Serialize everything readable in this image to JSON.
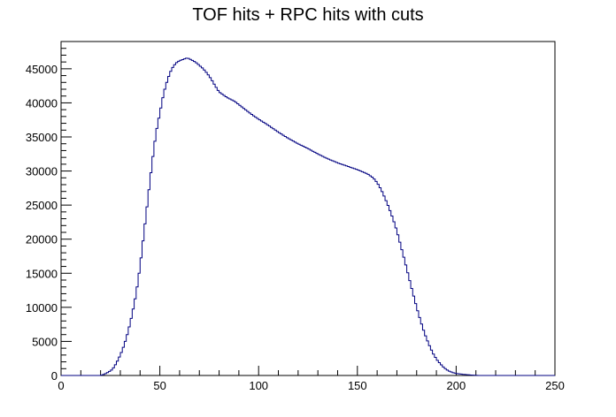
{
  "chart_data": {
    "type": "histogram",
    "title": "TOF hits + RPC hits with cuts",
    "xlabel": "",
    "ylabel": "",
    "xlim": [
      0,
      250
    ],
    "ylim": [
      0,
      49000
    ],
    "x_ticks": [
      0,
      50,
      100,
      150,
      200,
      250
    ],
    "y_ticks": [
      0,
      5000,
      10000,
      15000,
      20000,
      25000,
      30000,
      35000,
      40000,
      45000
    ],
    "bin_width": 1,
    "grid": false,
    "legend": "none",
    "line_color": "#000080",
    "points": [
      [
        20,
        0
      ],
      [
        22,
        200
      ],
      [
        24,
        500
      ],
      [
        26,
        900
      ],
      [
        28,
        1800
      ],
      [
        30,
        3000
      ],
      [
        32,
        4500
      ],
      [
        34,
        6500
      ],
      [
        36,
        9000
      ],
      [
        38,
        12000
      ],
      [
        40,
        16000
      ],
      [
        42,
        21000
      ],
      [
        44,
        26000
      ],
      [
        46,
        31000
      ],
      [
        48,
        35500
      ],
      [
        50,
        38500
      ],
      [
        52,
        41500
      ],
      [
        54,
        43500
      ],
      [
        56,
        45000
      ],
      [
        58,
        45800
      ],
      [
        60,
        46200
      ],
      [
        62,
        46400
      ],
      [
        64,
        46600
      ],
      [
        66,
        46300
      ],
      [
        68,
        46000
      ],
      [
        70,
        45500
      ],
      [
        72,
        45000
      ],
      [
        74,
        44300
      ],
      [
        76,
        43500
      ],
      [
        78,
        42500
      ],
      [
        80,
        41600
      ],
      [
        84,
        40800
      ],
      [
        88,
        40200
      ],
      [
        92,
        39300
      ],
      [
        96,
        38400
      ],
      [
        100,
        37600
      ],
      [
        105,
        36700
      ],
      [
        110,
        35700
      ],
      [
        115,
        34800
      ],
      [
        120,
        34000
      ],
      [
        125,
        33300
      ],
      [
        130,
        32500
      ],
      [
        135,
        31800
      ],
      [
        140,
        31200
      ],
      [
        145,
        30700
      ],
      [
        150,
        30200
      ],
      [
        155,
        29600
      ],
      [
        158,
        29000
      ],
      [
        160,
        28300
      ],
      [
        162,
        27300
      ],
      [
        164,
        26000
      ],
      [
        166,
        24600
      ],
      [
        168,
        23000
      ],
      [
        170,
        21200
      ],
      [
        172,
        19000
      ],
      [
        174,
        16800
      ],
      [
        176,
        14500
      ],
      [
        178,
        12200
      ],
      [
        180,
        10000
      ],
      [
        182,
        8000
      ],
      [
        184,
        6200
      ],
      [
        186,
        4700
      ],
      [
        188,
        3400
      ],
      [
        190,
        2400
      ],
      [
        192,
        1700
      ],
      [
        194,
        1100
      ],
      [
        196,
        700
      ],
      [
        198,
        450
      ],
      [
        200,
        300
      ],
      [
        204,
        150
      ],
      [
        208,
        60
      ],
      [
        212,
        0
      ]
    ]
  }
}
